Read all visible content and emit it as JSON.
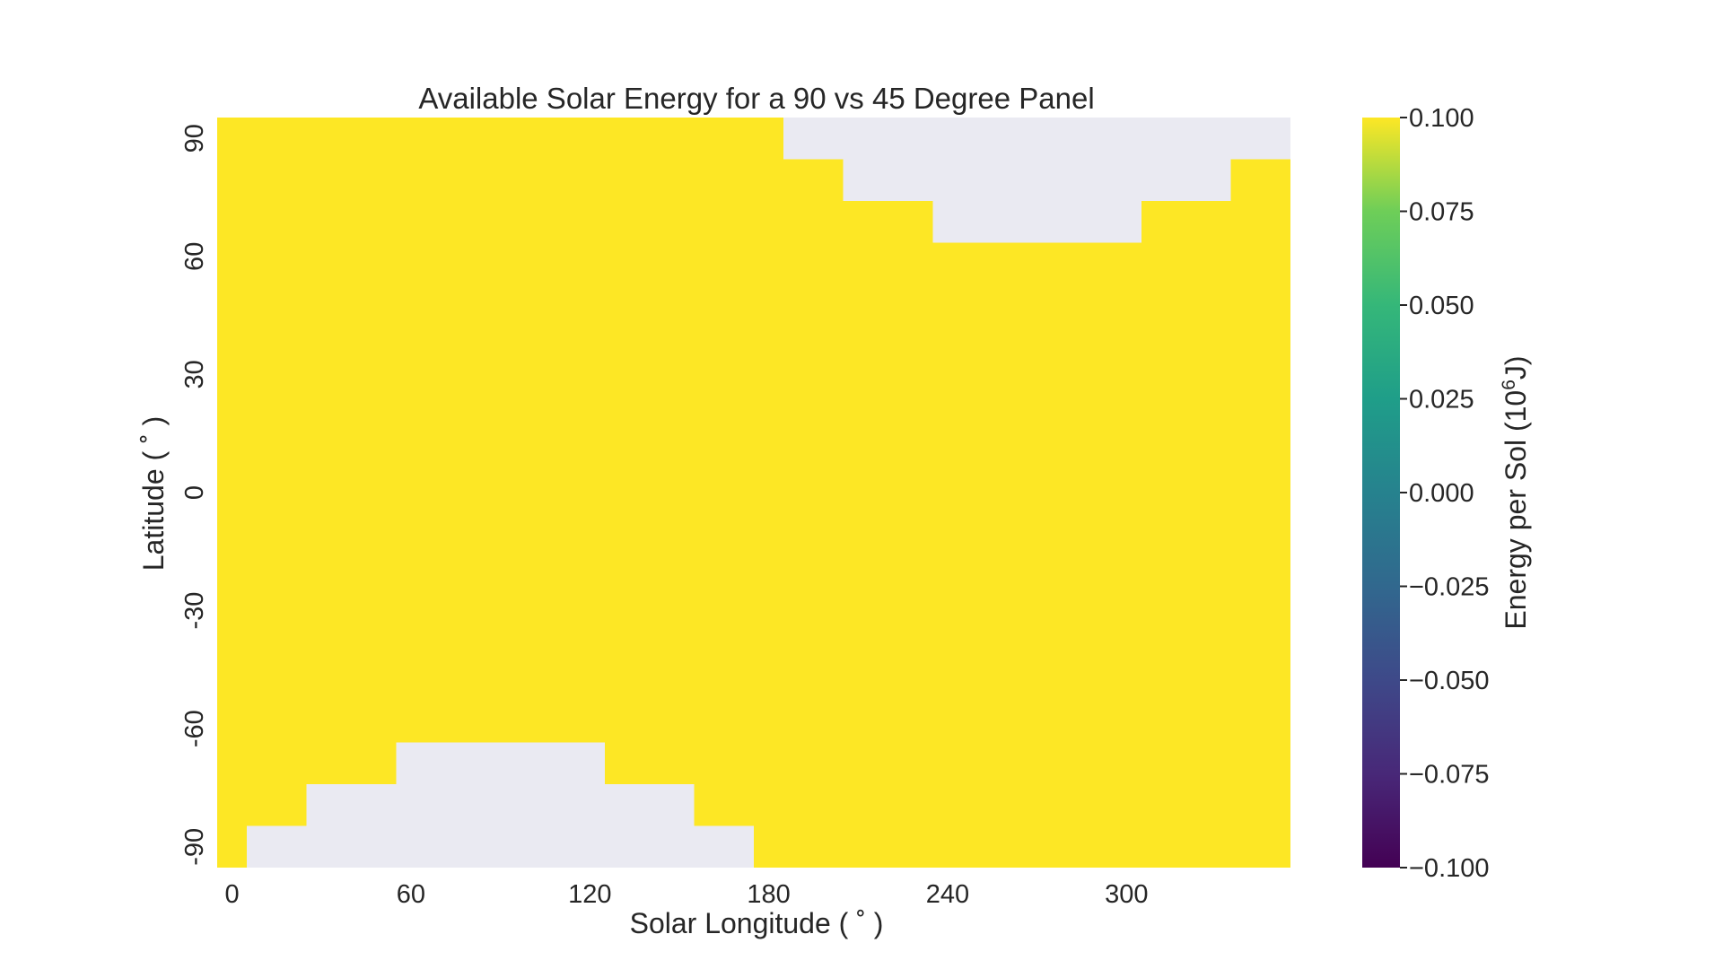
{
  "chart_data": {
    "type": "heatmap",
    "title": "Available Solar Energy for a 90 vs 45 Degree Panel",
    "xlabel": "Solar Longitude ( ˚ )",
    "ylabel": "Latitude ( ˚ )",
    "colorbar_label": "Energy per Sol (10",
    "colorbar_label_exp": "6",
    "colorbar_label_end": "J)",
    "x_ticks": [
      "0",
      "60",
      "120",
      "180",
      "240",
      "300"
    ],
    "y_ticks": [
      "90",
      "60",
      "30",
      "0",
      "-30",
      "-60",
      "-90"
    ],
    "colorbar_ticks": [
      "0.100",
      "0.075",
      "0.050",
      "0.025",
      "0.000",
      "−0.025",
      "−0.050",
      "−0.075",
      "−0.100"
    ],
    "colormap": "viridis",
    "vmin": -0.1,
    "vmax": 0.1,
    "xlim": [
      0,
      360
    ],
    "ylim": [
      -90,
      90
    ],
    "cell_size_deg": 10,
    "fill_value": 0.1,
    "nan_color": "#eaeaf2",
    "missing_regions": [
      {
        "lat_min": 80,
        "lat_max": 90,
        "ls_min": 190,
        "ls_max": 360
      },
      {
        "lat_min": 70,
        "lat_max": 80,
        "ls_min": 210,
        "ls_max": 340
      },
      {
        "lat_min": 60,
        "lat_max": 70,
        "ls_min": 240,
        "ls_max": 310
      },
      {
        "lat_min": -70,
        "lat_max": -60,
        "ls_min": 60,
        "ls_max": 130
      },
      {
        "lat_min": -80,
        "lat_max": -70,
        "ls_min": 30,
        "ls_max": 160
      },
      {
        "lat_min": -90,
        "lat_max": -80,
        "ls_min": 10,
        "ls_max": 180
      }
    ]
  }
}
